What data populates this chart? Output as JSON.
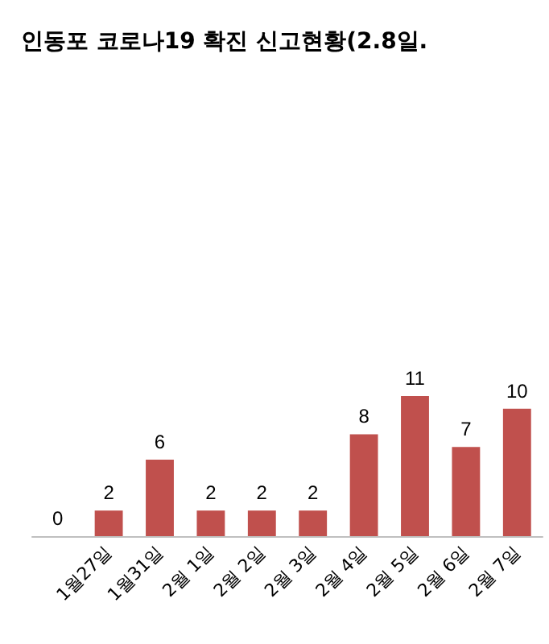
{
  "chart_data": {
    "type": "bar",
    "title": "인동포 코로나19 확진 신고현황(2.8일.",
    "categories": [
      null,
      "1월27일",
      "1월31일",
      "2월 1일",
      "2월 2일",
      "2월 3일",
      "2월 4일",
      "2월 5일",
      "2월 6일",
      "2월 7일"
    ],
    "values": [
      0,
      2,
      6,
      2,
      2,
      2,
      8,
      11,
      7,
      10
    ],
    "color": "#c0504d",
    "data_labels": true
  }
}
